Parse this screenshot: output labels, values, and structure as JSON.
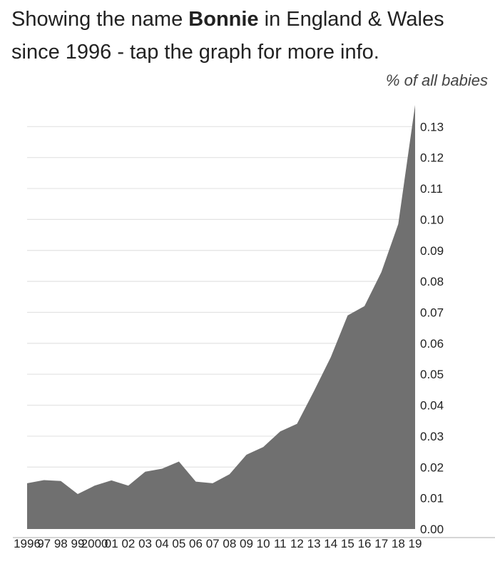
{
  "header": {
    "prefix": "Showing the name ",
    "name": "Bonnie",
    "suffix": " in England & Wales since 1996 - tap the graph for more info."
  },
  "chart_data": {
    "type": "area",
    "ylabel": "% of all babies",
    "x": [
      "1996",
      "1997",
      "1998",
      "1999",
      "2000",
      "2001",
      "2002",
      "2003",
      "2004",
      "2005",
      "2006",
      "2007",
      "2008",
      "2009",
      "2010",
      "2011",
      "2012",
      "2013",
      "2014",
      "2015",
      "2016",
      "2017",
      "2018",
      "2019"
    ],
    "x_tick_labels": [
      "1996",
      "97",
      "98",
      "99",
      "2000",
      "01",
      "02",
      "03",
      "04",
      "05",
      "06",
      "07",
      "08",
      "09",
      "10",
      "11",
      "12",
      "13",
      "14",
      "15",
      "16",
      "17",
      "18",
      "19"
    ],
    "values": [
      0.0148,
      0.0158,
      0.0155,
      0.0113,
      0.014,
      0.0157,
      0.014,
      0.0185,
      0.0195,
      0.0218,
      0.0153,
      0.0148,
      0.0177,
      0.024,
      0.0265,
      0.0315,
      0.034,
      0.0445,
      0.0555,
      0.069,
      0.072,
      0.083,
      0.0985,
      0.137
    ],
    "y_ticks": [
      "0.00",
      "0.01",
      "0.02",
      "0.03",
      "0.04",
      "0.05",
      "0.06",
      "0.07",
      "0.08",
      "0.09",
      "0.10",
      "0.11",
      "0.12",
      "0.13"
    ],
    "ylim": [
      0,
      0.14
    ],
    "grid": true,
    "fill_color": "#707070"
  }
}
